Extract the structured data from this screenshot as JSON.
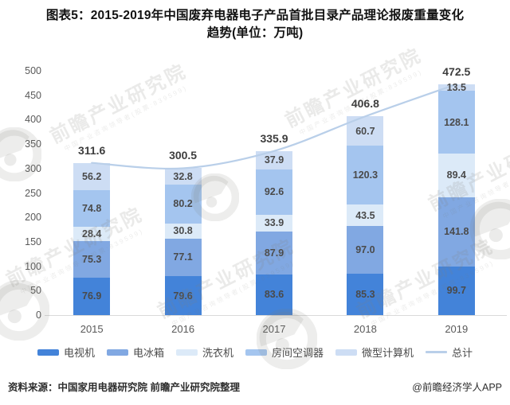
{
  "title": {
    "line1": "图表5：2015-2019年中国废弃电器电子产品首批目录产品理论报废重量变化",
    "line2": "趋势(单位：万吨)"
  },
  "chart_data": {
    "type": "bar",
    "stacked": true,
    "categories": [
      "2015",
      "2016",
      "2017",
      "2018",
      "2019"
    ],
    "series": [
      {
        "name": "电视机",
        "color": "#4383d9",
        "values": [
          76.9,
          79.6,
          83.6,
          85.3,
          99.7
        ]
      },
      {
        "name": "电冰箱",
        "color": "#81a8e2",
        "values": [
          75.3,
          77.1,
          87.9,
          97.0,
          141.8
        ]
      },
      {
        "name": "洗衣机",
        "color": "#dceaf8",
        "values": [
          28.4,
          30.8,
          33.9,
          43.5,
          89.4
        ]
      },
      {
        "name": "房间空调器",
        "color": "#a4c5ef",
        "values": [
          74.8,
          80.2,
          92.6,
          120.3,
          128.1
        ]
      },
      {
        "name": "微型计算机",
        "color": "#cdddf4",
        "values": [
          56.2,
          32.8,
          37.9,
          60.7,
          13.5
        ]
      }
    ],
    "line_series": {
      "name": "总计",
      "color": "#b9cfe9",
      "values": [
        311.6,
        300.5,
        335.9,
        406.8,
        472.5
      ]
    },
    "ylim": [
      0,
      500
    ],
    "ytick_step": 50,
    "grid": false,
    "legend_position": "bottom",
    "value_labels": "inside-segments-and-total-above"
  },
  "footer": {
    "source": "资料来源：中国家用电器研究院 前瞻产业研究院整理",
    "credit": "@前瞻经济学人APP"
  },
  "watermark": {
    "text": "前瞻产业研究院",
    "subtext": "中国产业咨询领导者(股票:839599)"
  }
}
